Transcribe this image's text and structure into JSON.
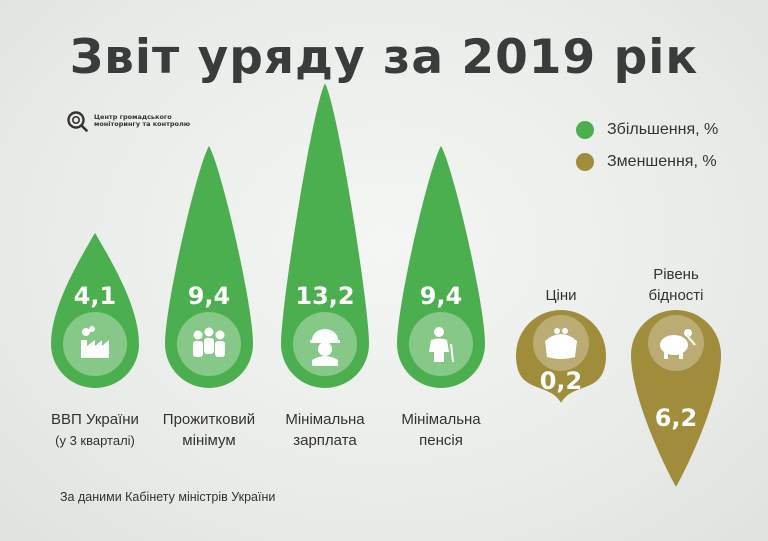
{
  "page": {
    "title": "Звіт уряду за 2019 рік",
    "logo_text": "Центр громадського моніторингу та контролю",
    "source": "За даними Кабінету міністрів України"
  },
  "colors": {
    "increase": "#4caf4f",
    "decrease": "#a08d3c"
  },
  "icons": [
    "factory-icon",
    "people-icon",
    "worker-icon",
    "pensioner-icon",
    "wallet-icon",
    "piggy-bank-icon"
  ],
  "chart_data": {
    "type": "bar",
    "title": "Звіт уряду за 2019 рік",
    "categories": [
      [
        "ВВП України",
        "(у 3 кварталі)"
      ],
      [
        "Прожитковий",
        "мінімум"
      ],
      [
        "Мінімальна",
        "зарплата"
      ],
      [
        "Мінімальна",
        "пенсія"
      ],
      [
        "Ціни"
      ],
      [
        "Рівень",
        "бідності"
      ]
    ],
    "labels": [
      "4,1",
      "9,4",
      "13,2",
      "9,4",
      "0,2",
      "6,2"
    ],
    "series": [
      {
        "name": "Збільшення, %",
        "values": [
          4.1,
          9.4,
          13.2,
          9.4,
          null,
          null
        ]
      },
      {
        "name": "Зменшення, %",
        "values": [
          null,
          null,
          null,
          null,
          0.2,
          6.2
        ]
      }
    ],
    "legend": "top-right",
    "grid": false,
    "source": "За даними Кабінету міністрів України"
  }
}
